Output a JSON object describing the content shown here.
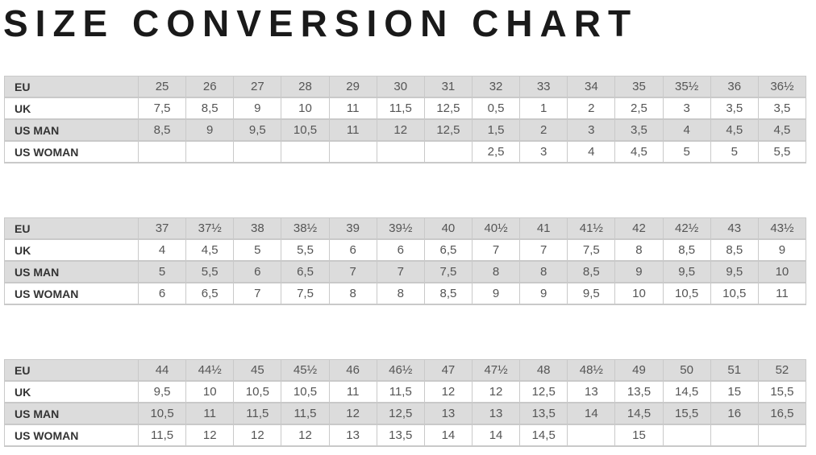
{
  "title": "SIZE CONVERSION CHART",
  "colors": {
    "row_shade": "#dcdcdc",
    "border": "#c9c9c9"
  },
  "tables": [
    {
      "rows": [
        {
          "label": "EU",
          "cells": [
            "25",
            "26",
            "27",
            "28",
            "29",
            "30",
            "31",
            "32",
            "33",
            "34",
            "35",
            "35½",
            "36",
            "36½"
          ]
        },
        {
          "label": "UK",
          "cells": [
            "7,5",
            "8,5",
            "9",
            "10",
            "11",
            "11,5",
            "12,5",
            "0,5",
            "1",
            "2",
            "2,5",
            "3",
            "3,5",
            "3,5"
          ]
        },
        {
          "label": "US MAN",
          "cells": [
            "8,5",
            "9",
            "9,5",
            "10,5",
            "11",
            "12",
            "12,5",
            "1,5",
            "2",
            "3",
            "3,5",
            "4",
            "4,5",
            "4,5"
          ]
        },
        {
          "label": "US WOMAN",
          "cells": [
            "",
            "",
            "",
            "",
            "",
            "",
            "",
            "2,5",
            "3",
            "4",
            "4,5",
            "5",
            "5",
            "5,5"
          ]
        }
      ]
    },
    {
      "rows": [
        {
          "label": "EU",
          "cells": [
            "37",
            "37½",
            "38",
            "38½",
            "39",
            "39½",
            "40",
            "40½",
            "41",
            "41½",
            "42",
            "42½",
            "43",
            "43½"
          ]
        },
        {
          "label": "UK",
          "cells": [
            "4",
            "4,5",
            "5",
            "5,5",
            "6",
            "6",
            "6,5",
            "7",
            "7",
            "7,5",
            "8",
            "8,5",
            "8,5",
            "9"
          ]
        },
        {
          "label": "US MAN",
          "cells": [
            "5",
            "5,5",
            "6",
            "6,5",
            "7",
            "7",
            "7,5",
            "8",
            "8",
            "8,5",
            "9",
            "9,5",
            "9,5",
            "10"
          ]
        },
        {
          "label": "US WOMAN",
          "cells": [
            "6",
            "6,5",
            "7",
            "7,5",
            "8",
            "8",
            "8,5",
            "9",
            "9",
            "9,5",
            "10",
            "10,5",
            "10,5",
            "11"
          ]
        }
      ]
    },
    {
      "rows": [
        {
          "label": "EU",
          "cells": [
            "44",
            "44½",
            "45",
            "45½",
            "46",
            "46½",
            "47",
            "47½",
            "48",
            "48½",
            "49",
            "50",
            "51",
            "52"
          ]
        },
        {
          "label": "UK",
          "cells": [
            "9,5",
            "10",
            "10,5",
            "10,5",
            "11",
            "11,5",
            "12",
            "12",
            "12,5",
            "13",
            "13,5",
            "14,5",
            "15",
            "15,5"
          ]
        },
        {
          "label": "US MAN",
          "cells": [
            "10,5",
            "11",
            "11,5",
            "11,5",
            "12",
            "12,5",
            "13",
            "13",
            "13,5",
            "14",
            "14,5",
            "15,5",
            "16",
            "16,5"
          ]
        },
        {
          "label": "US WOMAN",
          "cells": [
            "11,5",
            "12",
            "12",
            "12",
            "13",
            "13,5",
            "14",
            "14",
            "14,5",
            "",
            "15",
            "",
            "",
            ""
          ]
        }
      ]
    }
  ]
}
